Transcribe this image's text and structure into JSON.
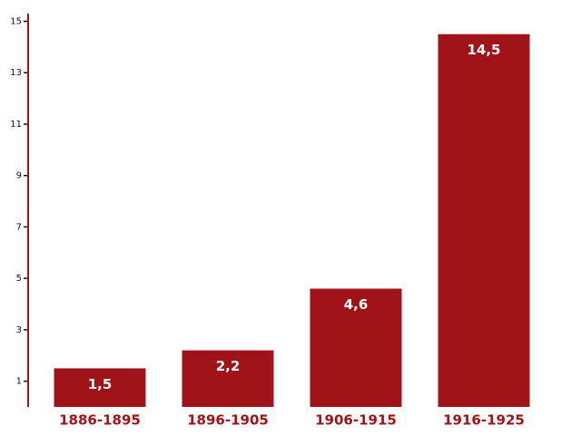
{
  "chart_data": {
    "type": "bar",
    "categories": [
      "1886-1895",
      "1896-1905",
      "1906-1915",
      "1916-1925"
    ],
    "values": [
      1.5,
      2.2,
      4.6,
      14.5
    ],
    "value_labels": [
      "1,5",
      "2,2",
      "4,6",
      "14,5"
    ],
    "color": "#a01419",
    "ylim": [
      0,
      15.3
    ],
    "yticks": [
      1,
      3,
      5,
      7,
      9,
      11,
      13,
      15
    ],
    "grid": false
  }
}
